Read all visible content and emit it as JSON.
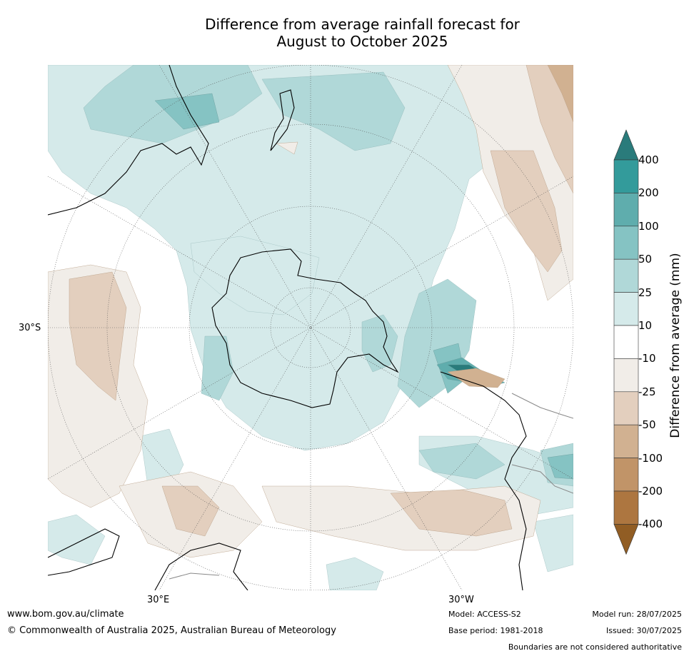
{
  "title": {
    "line1": "Difference from average rainfall forecast for",
    "line2": "August to October 2025"
  },
  "map": {
    "projection": "south-polar stereographic",
    "lat_label": "30°S",
    "lon_labels": {
      "east": "30°E",
      "west": "30°W"
    }
  },
  "colorbar": {
    "title": "Difference from average (mm)",
    "ticks": [
      "400",
      "200",
      "100",
      "50",
      "25",
      "10",
      "-10",
      "-25",
      "-50",
      "-100",
      "-200",
      "-400"
    ],
    "colors": {
      "above_400": "#2a7b7b",
      "200_400": "#339b9b",
      "100_200": "#5fadad",
      "50_100": "#85c3c3",
      "25_50": "#b0d8d8",
      "10_25": "#d5eaea",
      "neutral": "#ffffff",
      "m10_m25": "#f1ede8",
      "m25_m50": "#e3cfbe",
      "m50_m100": "#d1b191",
      "m100_m200": "#c19468",
      "m200_m400": "#ad7640",
      "below_m400": "#915d24"
    }
  },
  "footer": {
    "url": "www.bom.gov.au/climate",
    "copyright": "© Commonwealth of Australia 2025, Australian Bureau of Meteorology",
    "model": "Model: ACCESS-S2",
    "base_period": "Base period: 1981-2018",
    "model_run": "Model run: 28/07/2025",
    "issued": "Issued: 30/07/2025",
    "disclaimer": "Boundaries are not considered authoritative"
  }
}
